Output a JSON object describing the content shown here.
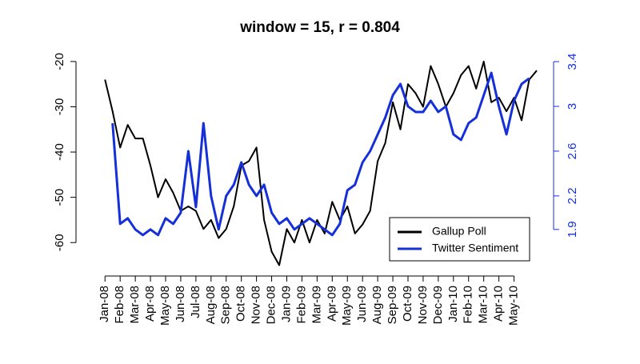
{
  "chart_data": {
    "type": "line",
    "title": "window = 15, r = 0.804",
    "x": [
      0,
      0.5,
      1,
      1.5,
      2,
      2.5,
      3,
      3.5,
      4,
      4.5,
      5,
      5.5,
      6,
      6.5,
      7,
      7.5,
      8,
      8.5,
      9,
      9.5,
      10,
      10.5,
      11,
      11.5,
      12,
      12.5,
      13,
      13.5,
      14,
      14.5,
      15,
      15.5,
      16,
      16.5,
      17,
      17.5,
      18,
      18.5,
      19,
      19.5,
      20,
      20.5,
      21,
      21.5,
      22,
      22.5,
      23,
      23.5,
      24,
      24.5,
      25,
      25.5,
      26,
      26.5,
      27,
      27.5,
      28,
      28.5
    ],
    "xlim": [
      -0.7,
      29.4
    ],
    "xticks": [
      {
        "value": 0,
        "label": "Jan-08"
      },
      {
        "value": 1,
        "label": "Feb-08"
      },
      {
        "value": 2,
        "label": "Mar-08"
      },
      {
        "value": 3,
        "label": "Apr-08"
      },
      {
        "value": 4,
        "label": "May-08"
      },
      {
        "value": 5,
        "label": "Jun-08"
      },
      {
        "value": 6,
        "label": "Jul-08"
      },
      {
        "value": 7,
        "label": "Aug-08"
      },
      {
        "value": 8,
        "label": "Sep-08"
      },
      {
        "value": 9,
        "label": "Oct-08"
      },
      {
        "value": 10,
        "label": "Nov-08"
      },
      {
        "value": 11,
        "label": "Dec-08"
      },
      {
        "value": 12,
        "label": "Jan-09"
      },
      {
        "value": 13,
        "label": "Feb-09"
      },
      {
        "value": 14,
        "label": "Mar-09"
      },
      {
        "value": 15,
        "label": "Apr-09"
      },
      {
        "value": 16,
        "label": "May-09"
      },
      {
        "value": 17,
        "label": "Jun-09"
      },
      {
        "value": 18,
        "label": "Aug-09"
      },
      {
        "value": 19,
        "label": "Sep-09"
      },
      {
        "value": 20,
        "label": "Oct-09"
      },
      {
        "value": 21,
        "label": "Nov-09"
      },
      {
        "value": 22,
        "label": "Dec-09"
      },
      {
        "value": 23,
        "label": "Jan-10"
      },
      {
        "value": 24,
        "label": "Feb-10"
      },
      {
        "value": 25,
        "label": "Mar-10"
      },
      {
        "value": 26,
        "label": "Apr-10"
      },
      {
        "value": 27,
        "label": "May-10"
      }
    ],
    "ylim": [
      -66.5,
      -17.9
    ],
    "yticks": [
      -20,
      -30,
      -40,
      -50,
      -60
    ],
    "y2lim": [
      1.52,
      3.486
    ],
    "y2ticks": [
      3.4,
      3.0,
      2.6,
      2.2,
      1.9
    ],
    "y2_color": "#1530d8",
    "legend": "bottom-right",
    "series": [
      {
        "name": "Gallup Poll",
        "color": "#000000",
        "values": [
          -24,
          -31,
          -39,
          -34,
          -37,
          -37,
          -43,
          -50,
          -46,
          -49,
          -53,
          -52,
          -53,
          -57,
          -55,
          -59,
          -57,
          -52,
          -43,
          -42,
          -39,
          -55,
          -62,
          -65,
          -57,
          -60,
          -55,
          -60,
          -55,
          -58,
          -51,
          -55,
          -52,
          -58,
          -56,
          -53,
          -42,
          -38,
          -29,
          -35,
          -25,
          -27,
          -30,
          -21,
          -25,
          -30,
          -27,
          -23,
          -21,
          -26,
          -20,
          -29,
          -28,
          -31,
          -28,
          -33,
          -24,
          -22
        ]
      },
      {
        "name": "Twitter Sentiment",
        "color": "#1530d8",
        "axis": "y2",
        "values": [
          null,
          2.85,
          1.95,
          2.0,
          1.9,
          1.85,
          1.9,
          1.85,
          2.0,
          1.95,
          2.05,
          2.6,
          2.1,
          2.85,
          2.2,
          1.9,
          2.2,
          2.3,
          2.5,
          2.3,
          2.2,
          2.3,
          2.05,
          1.95,
          2.0,
          1.9,
          1.95,
          2.0,
          1.95,
          1.9,
          1.85,
          1.95,
          2.25,
          2.3,
          2.5,
          2.6,
          2.75,
          2.9,
          3.1,
          3.2,
          3.0,
          2.95,
          2.95,
          3.05,
          2.95,
          3.0,
          2.75,
          2.7,
          2.85,
          2.9,
          3.1,
          3.3,
          3.0,
          2.75,
          3.05,
          3.2,
          3.25,
          null
        ]
      }
    ]
  }
}
